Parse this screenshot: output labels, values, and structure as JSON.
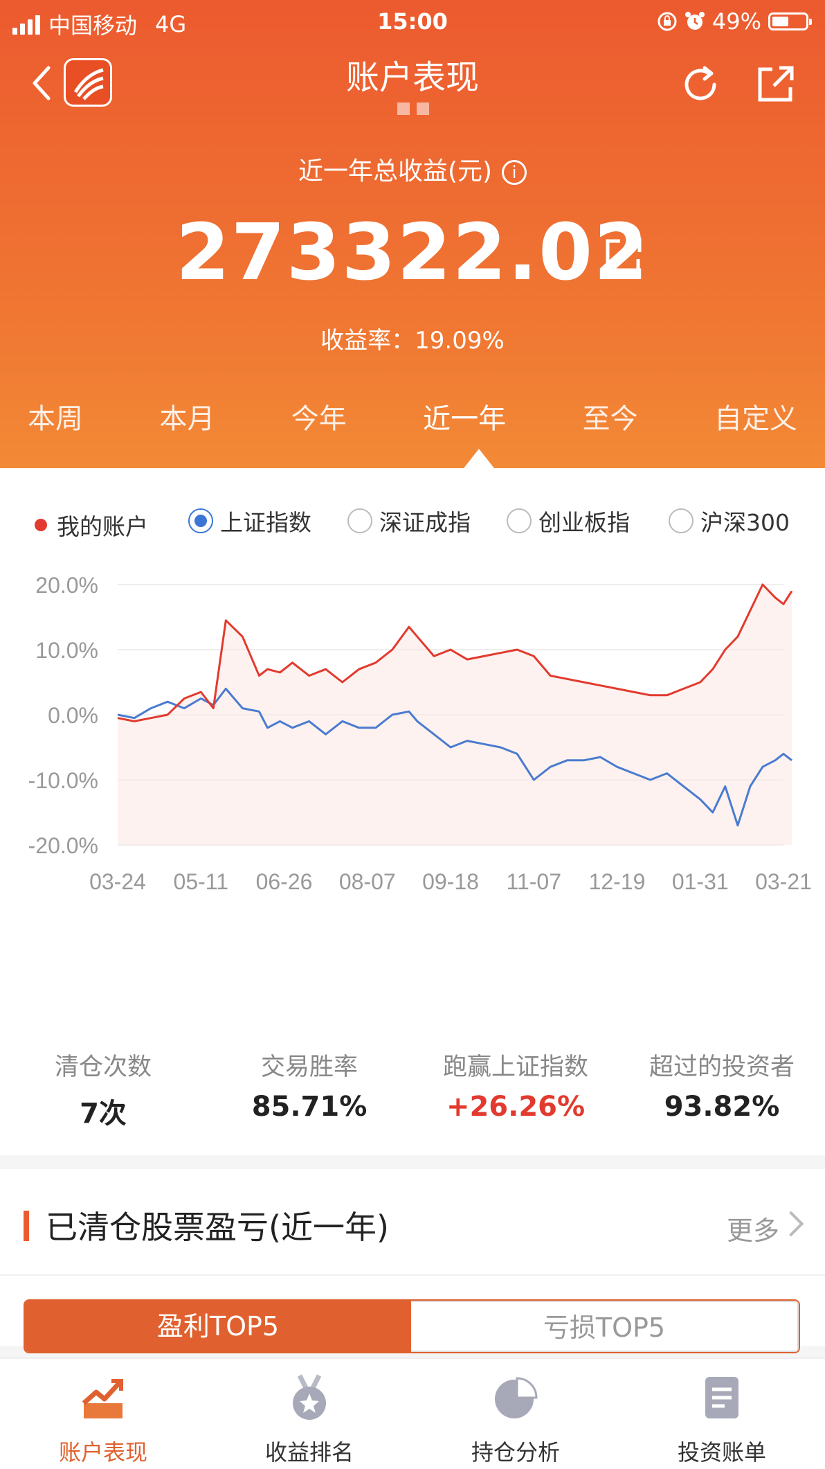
{
  "status_bar": {
    "carrier": "中国移动",
    "network": "4G",
    "time": "15:00",
    "battery": "49%",
    "battery_level": 0.49
  },
  "nav": {
    "title": "账户表现"
  },
  "summary": {
    "total_label": "近一年总收益(元)",
    "total_value": "273322.02",
    "yield_text": "收益率：19.09%"
  },
  "period_tabs": [
    "本周",
    "本月",
    "今年",
    "近一年",
    "至今",
    "自定义"
  ],
  "active_tab": "近一年",
  "legend": {
    "my_account": "我的账户",
    "sh_index": "上证指数",
    "sz_index": "深证成指",
    "chinext": "创业板指",
    "hs300": "沪深300"
  },
  "chart_data": {
    "type": "line",
    "y_ticks": [
      "20.0%",
      "10.0%",
      "0.0%",
      "-10.0%",
      "-20.0%"
    ],
    "ylim": [
      -20,
      20
    ],
    "x_labels": [
      "03-24",
      "05-11",
      "06-26",
      "08-07",
      "09-18",
      "11-07",
      "12-19",
      "01-31",
      "03-21"
    ],
    "series": [
      {
        "name": "我的账户",
        "color": "#e23a2e",
        "x": [
          0,
          0.2,
          0.4,
          0.6,
          0.8,
          1.0,
          1.15,
          1.3,
          1.5,
          1.7,
          1.8,
          1.95,
          2.1,
          2.3,
          2.5,
          2.7,
          2.9,
          3.1,
          3.3,
          3.5,
          3.6,
          3.8,
          4.0,
          4.2,
          4.4,
          4.6,
          4.8,
          5.0,
          5.2,
          5.4,
          5.6,
          5.8,
          6.0,
          6.2,
          6.4,
          6.6,
          6.8,
          7.0,
          7.15,
          7.3,
          7.45,
          7.6,
          7.75,
          7.9,
          8.0,
          8.1
        ],
        "values": [
          -0.5,
          -1,
          -0.5,
          0,
          2.5,
          3.5,
          1,
          14.5,
          12,
          6,
          7,
          6.5,
          8,
          6,
          7,
          5,
          7,
          8,
          10,
          13.5,
          12,
          9,
          10,
          8.5,
          9,
          9.5,
          10,
          9,
          6,
          5.5,
          5,
          4.5,
          4,
          3.5,
          3,
          3,
          4,
          5,
          7,
          10,
          12,
          16,
          20,
          18,
          17,
          19
        ]
      },
      {
        "name": "上证指数",
        "color": "#4a7bd0",
        "x": [
          0,
          0.2,
          0.4,
          0.6,
          0.8,
          1.0,
          1.15,
          1.3,
          1.5,
          1.7,
          1.8,
          1.95,
          2.1,
          2.3,
          2.5,
          2.7,
          2.9,
          3.1,
          3.3,
          3.5,
          3.6,
          3.8,
          4.0,
          4.2,
          4.4,
          4.6,
          4.8,
          5.0,
          5.2,
          5.4,
          5.6,
          5.8,
          6.0,
          6.2,
          6.4,
          6.6,
          6.8,
          7.0,
          7.15,
          7.3,
          7.45,
          7.6,
          7.75,
          7.9,
          8.0,
          8.1
        ],
        "values": [
          0,
          -0.5,
          1,
          2,
          1,
          2.5,
          1.5,
          4,
          1,
          0.5,
          -2,
          -1,
          -2,
          -1,
          -3,
          -1,
          -2,
          -2,
          0,
          0.5,
          -1,
          -3,
          -5,
          -4,
          -4.5,
          -5,
          -6,
          -10,
          -8,
          -7,
          -7,
          -6.5,
          -8,
          -9,
          -10,
          -9,
          -11,
          -13,
          -15,
          -11,
          -17,
          -11,
          -8,
          -7,
          -6,
          -7
        ]
      }
    ]
  },
  "stats": [
    {
      "label": "清仓次数",
      "value": "7次"
    },
    {
      "label": "交易胜率",
      "value": "85.71%"
    },
    {
      "label": "跑赢上证指数",
      "value": "+26.26%"
    },
    {
      "label": "超过的投资者",
      "value": "93.82%"
    }
  ],
  "closed_section": {
    "title": "已清仓股票盈亏(近一年)",
    "more": "更多",
    "segments": [
      "盈利TOP5",
      "亏损TOP5"
    ]
  },
  "bottom_tabs": [
    "账户表现",
    "收益排名",
    "持仓分析",
    "投资账单"
  ],
  "colors": {
    "accent": "#ec5a2f",
    "account_line": "#e23a2e",
    "index_line": "#4a7bd0"
  }
}
